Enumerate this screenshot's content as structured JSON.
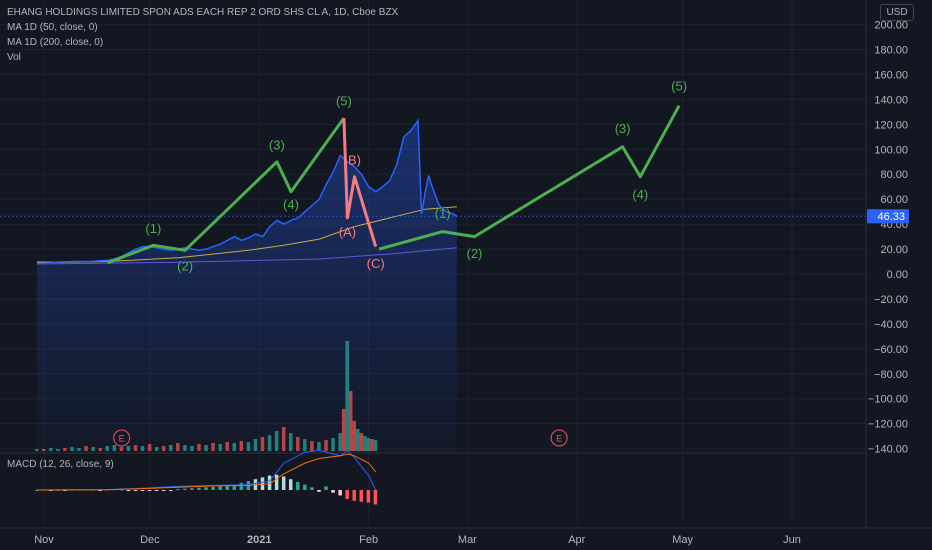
{
  "legend": {
    "title": "EHANG HOLDINGS LIMITED SPON ADS EACH REP 2 ORD SHS CL A, 1D, Cboe BZX",
    "ma50": "MA  1D (50, close, 0)",
    "ma200": "MA  1D (200, close, 0)",
    "vol": "Vol",
    "macd": "MACD (12, 26, close, 9)"
  },
  "currency": "USD",
  "last_price": "46.33",
  "colors": {
    "background": "#131722",
    "price_line": "#2962ff",
    "ma50": "#c9a94a",
    "ma200": "#5b5bd6",
    "wave_up": "#4caf50",
    "wave_down": "#f77c80",
    "vol_up": "#26a69a",
    "vol_down": "#ef5350",
    "macd_line": "#2962ff",
    "signal_line": "#ff6d00"
  },
  "chart_data": {
    "type": "line",
    "title": "EHANG HOLDINGS LIMITED SPON ADS EACH REP 2 ORD SHS CL A, 1D, Cboe BZX",
    "y_ticks": [
      200,
      180,
      160,
      140,
      120,
      100,
      80,
      60,
      40,
      20,
      0,
      -20,
      -40,
      -60,
      -80,
      -100,
      -120,
      -140
    ],
    "y_tick_labels": [
      "200.00",
      "180.00",
      "160.00",
      "140.00",
      "120.00",
      "100.00",
      "80.00",
      "60.00",
      "40.00",
      "20.00",
      "0.00",
      "−20.00",
      "−40.00",
      "−60.00",
      "−80.00",
      "−100.00",
      "−120.00",
      "−140.00"
    ],
    "ylim": [
      -142,
      210
    ],
    "x_ticks": [
      {
        "label": "Nov",
        "day": 2
      },
      {
        "label": "Dec",
        "day": 32
      },
      {
        "label": "2021",
        "day": 63
      },
      {
        "label": "Feb",
        "day": 94
      },
      {
        "label": "Mar",
        "day": 122
      },
      {
        "label": "Apr",
        "day": 153
      },
      {
        "label": "May",
        "day": 183
      },
      {
        "label": "Jun",
        "day": 214
      }
    ],
    "x_axis_note": "x values are calendar days counted from Oct 30 2020",
    "series": [
      {
        "name": "",
        "kind": "close",
        "points": [
          [
            0,
            10
          ],
          [
            5,
            9.5
          ],
          [
            10,
            10
          ],
          [
            15,
            10
          ],
          [
            20,
            11
          ],
          [
            22,
            12
          ],
          [
            24,
            14
          ],
          [
            26,
            17
          ],
          [
            28,
            20
          ],
          [
            30,
            22
          ],
          [
            32,
            22
          ],
          [
            34,
            21
          ],
          [
            36,
            20
          ],
          [
            38,
            19
          ],
          [
            40,
            20
          ],
          [
            42,
            21
          ],
          [
            44,
            20
          ],
          [
            46,
            19
          ],
          [
            48,
            20
          ],
          [
            50,
            22
          ],
          [
            52,
            24
          ],
          [
            54,
            27
          ],
          [
            56,
            30
          ],
          [
            58,
            27
          ],
          [
            60,
            29
          ],
          [
            62,
            32
          ],
          [
            64,
            30
          ],
          [
            66,
            38
          ],
          [
            68,
            43
          ],
          [
            70,
            40
          ],
          [
            72,
            43
          ],
          [
            74,
            45
          ],
          [
            76,
            50
          ],
          [
            78,
            55
          ],
          [
            80,
            60
          ],
          [
            82,
            72
          ],
          [
            84,
            82
          ],
          [
            86,
            95
          ],
          [
            88,
            90
          ],
          [
            90,
            86
          ],
          [
            92,
            80
          ],
          [
            94,
            70
          ],
          [
            96,
            66
          ],
          [
            98,
            70
          ],
          [
            100,
            75
          ],
          [
            102,
            88
          ],
          [
            104,
            110
          ],
          [
            106,
            115
          ],
          [
            108,
            123
          ],
          [
            109,
            48
          ],
          [
            110,
            65
          ],
          [
            111,
            79
          ],
          [
            112,
            70
          ],
          [
            114,
            55
          ],
          [
            116,
            50
          ],
          [
            118,
            48
          ],
          [
            119,
            46.33
          ]
        ]
      },
      {
        "name": "MA 1D (50, close, 0)",
        "kind": "ma50",
        "points": [
          [
            0,
            9
          ],
          [
            20,
            10
          ],
          [
            40,
            13
          ],
          [
            60,
            19
          ],
          [
            70,
            23
          ],
          [
            80,
            28
          ],
          [
            90,
            38
          ],
          [
            100,
            45
          ],
          [
            110,
            52
          ],
          [
            119,
            54
          ]
        ]
      },
      {
        "name": "MA 1D (200, close, 0)",
        "kind": "ma200",
        "points": [
          [
            0,
            8
          ],
          [
            40,
            9.5
          ],
          [
            80,
            12
          ],
          [
            100,
            16
          ],
          [
            119,
            21
          ]
        ]
      }
    ],
    "annotations": {
      "impulse_wave": {
        "points": [
          [
            20,
            9
          ],
          [
            33,
            23
          ],
          [
            42,
            19
          ],
          [
            68,
            90
          ],
          [
            72,
            66
          ],
          [
            87,
            125
          ]
        ],
        "labels": [
          {
            "text": "(1)",
            "day": 33,
            "price": 33
          },
          {
            "text": "(2)",
            "day": 42,
            "price": 3
          },
          {
            "text": "(3)",
            "day": 68,
            "price": 100
          },
          {
            "text": "(4)",
            "day": 72,
            "price": 52
          },
          {
            "text": "(5)",
            "day": 87,
            "price": 135
          }
        ]
      },
      "correction_wave": {
        "points": [
          [
            87,
            125
          ],
          [
            88,
            45
          ],
          [
            90,
            78
          ],
          [
            96,
            22
          ]
        ],
        "labels": [
          {
            "text": "B)",
            "day": 90,
            "price": 88
          },
          {
            "text": "(A)",
            "day": 88,
            "price": 30
          },
          {
            "text": "(C)",
            "day": 96,
            "price": 5
          }
        ]
      },
      "projection_wave": {
        "points": [
          [
            97,
            20
          ],
          [
            115,
            34
          ],
          [
            124,
            30
          ],
          [
            166,
            102
          ],
          [
            171,
            78
          ],
          [
            182,
            135
          ]
        ],
        "labels": [
          {
            "text": "(1)",
            "day": 115,
            "price": 45
          },
          {
            "text": "(2)",
            "day": 124,
            "price": 13
          },
          {
            "text": "(3)",
            "day": 166,
            "price": 113
          },
          {
            "text": "(4)",
            "day": 171,
            "price": 60
          },
          {
            "text": "(5)",
            "day": 182,
            "price": 147
          }
        ]
      },
      "earnings_markers": [
        {
          "text": "E",
          "day": 24
        },
        {
          "text": "E",
          "day": 148
        }
      ]
    },
    "volume": {
      "bars": [
        [
          0,
          2,
          "up"
        ],
        [
          2,
          2,
          "down"
        ],
        [
          4,
          3,
          "up"
        ],
        [
          6,
          2,
          "up"
        ],
        [
          8,
          3,
          "down"
        ],
        [
          10,
          4,
          "up"
        ],
        [
          12,
          3,
          "up"
        ],
        [
          14,
          5,
          "down"
        ],
        [
          16,
          4,
          "up"
        ],
        [
          18,
          3,
          "down"
        ],
        [
          20,
          5,
          "up"
        ],
        [
          22,
          6,
          "up"
        ],
        [
          24,
          4,
          "down"
        ],
        [
          26,
          5,
          "up"
        ],
        [
          28,
          6,
          "down"
        ],
        [
          30,
          5,
          "up"
        ],
        [
          32,
          7,
          "down"
        ],
        [
          34,
          4,
          "up"
        ],
        [
          36,
          5,
          "down"
        ],
        [
          38,
          6,
          "up"
        ],
        [
          40,
          8,
          "down"
        ],
        [
          42,
          6,
          "up"
        ],
        [
          44,
          5,
          "up"
        ],
        [
          46,
          7,
          "down"
        ],
        [
          48,
          6,
          "up"
        ],
        [
          50,
          8,
          "down"
        ],
        [
          52,
          7,
          "up"
        ],
        [
          54,
          9,
          "down"
        ],
        [
          56,
          8,
          "up"
        ],
        [
          58,
          10,
          "down"
        ],
        [
          60,
          9,
          "up"
        ],
        [
          62,
          12,
          "up"
        ],
        [
          64,
          14,
          "down"
        ],
        [
          66,
          16,
          "up"
        ],
        [
          68,
          20,
          "up"
        ],
        [
          70,
          24,
          "down"
        ],
        [
          72,
          18,
          "up"
        ],
        [
          74,
          14,
          "down"
        ],
        [
          76,
          12,
          "up"
        ],
        [
          78,
          10,
          "down"
        ],
        [
          80,
          9,
          "up"
        ],
        [
          82,
          11,
          "down"
        ],
        [
          84,
          13,
          "up"
        ],
        [
          86,
          18,
          "up"
        ],
        [
          87,
          42,
          "down"
        ],
        [
          88,
          110,
          "up"
        ],
        [
          89,
          60,
          "down"
        ],
        [
          90,
          30,
          "down"
        ],
        [
          91,
          22,
          "up"
        ],
        [
          92,
          18,
          "down"
        ],
        [
          93,
          15,
          "up"
        ],
        [
          94,
          13,
          "up"
        ],
        [
          95,
          12,
          "down"
        ],
        [
          96,
          11,
          "up"
        ]
      ]
    },
    "macd": {
      "macd_line": [
        [
          0,
          0
        ],
        [
          20,
          0.5
        ],
        [
          30,
          2
        ],
        [
          40,
          4
        ],
        [
          50,
          5
        ],
        [
          60,
          6
        ],
        [
          66,
          10
        ],
        [
          70,
          30
        ],
        [
          76,
          42
        ],
        [
          80,
          44
        ],
        [
          86,
          38
        ],
        [
          88,
          44
        ],
        [
          90,
          36
        ],
        [
          94,
          16
        ],
        [
          96,
          0
        ]
      ],
      "signal_line": [
        [
          0,
          0
        ],
        [
          20,
          0.3
        ],
        [
          30,
          1.5
        ],
        [
          40,
          3
        ],
        [
          50,
          4.5
        ],
        [
          60,
          5
        ],
        [
          66,
          7
        ],
        [
          70,
          18
        ],
        [
          76,
          30
        ],
        [
          80,
          35
        ],
        [
          86,
          38
        ],
        [
          88,
          40
        ],
        [
          90,
          38
        ],
        [
          94,
          30
        ],
        [
          96,
          20
        ]
      ],
      "histogram": [
        [
          0,
          0
        ],
        [
          2,
          0.5
        ],
        [
          4,
          -0.5
        ],
        [
          6,
          0.3
        ],
        [
          8,
          -0.3
        ],
        [
          10,
          0.5
        ],
        [
          12,
          0.4
        ],
        [
          14,
          0.6
        ],
        [
          16,
          0.4
        ],
        [
          18,
          -0.4
        ],
        [
          20,
          0.8
        ],
        [
          22,
          1
        ],
        [
          24,
          0.6
        ],
        [
          26,
          -0.5
        ],
        [
          28,
          -0.8
        ],
        [
          30,
          -1
        ],
        [
          32,
          -1.2
        ],
        [
          34,
          -1
        ],
        [
          36,
          -0.8
        ],
        [
          38,
          -0.5
        ],
        [
          40,
          1
        ],
        [
          42,
          1.5
        ],
        [
          44,
          2
        ],
        [
          46,
          2.5
        ],
        [
          48,
          3
        ],
        [
          50,
          3.5
        ],
        [
          52,
          4
        ],
        [
          54,
          5
        ],
        [
          56,
          6
        ],
        [
          58,
          8
        ],
        [
          60,
          10
        ],
        [
          62,
          12
        ],
        [
          64,
          14
        ],
        [
          66,
          16
        ],
        [
          68,
          17
        ],
        [
          70,
          15
        ],
        [
          72,
          12
        ],
        [
          74,
          9
        ],
        [
          76,
          6
        ],
        [
          78,
          3
        ],
        [
          80,
          -2
        ],
        [
          82,
          4
        ],
        [
          84,
          -3
        ],
        [
          86,
          -6
        ],
        [
          88,
          -10
        ],
        [
          90,
          -12
        ],
        [
          92,
          -13
        ],
        [
          94,
          -14
        ],
        [
          96,
          -16
        ]
      ]
    }
  }
}
